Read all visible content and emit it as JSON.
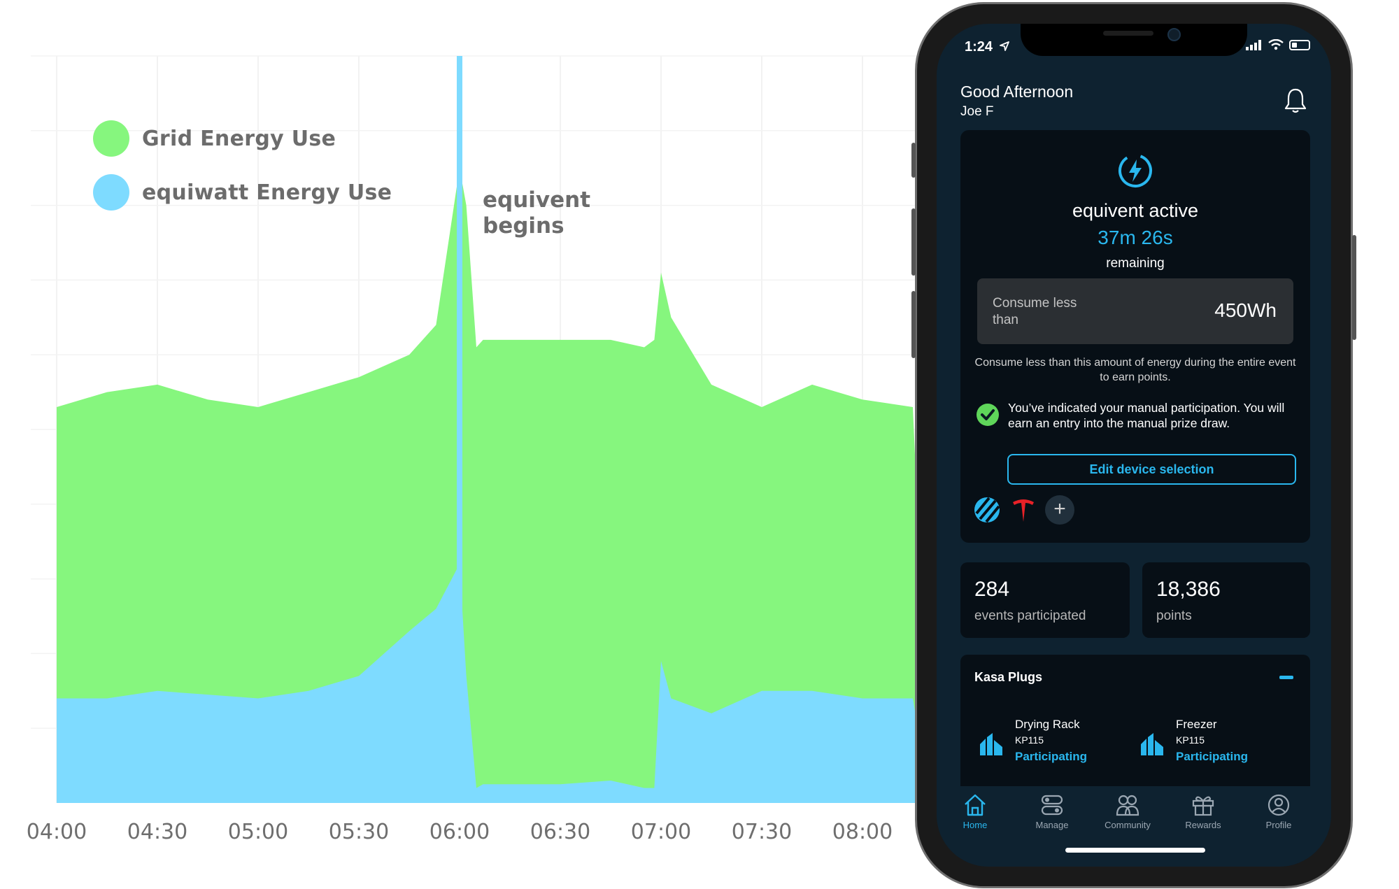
{
  "chart_data": {
    "type": "area",
    "x": [
      "04:00",
      "04:15",
      "04:30",
      "04:45",
      "05:00",
      "05:15",
      "05:30",
      "05:45",
      "05:53",
      "06:00",
      "06:02",
      "06:05",
      "06:07",
      "06:15",
      "06:30",
      "06:45",
      "06:55",
      "06:58",
      "07:00",
      "07:03",
      "07:15",
      "07:30",
      "07:45",
      "08:00",
      "08:15"
    ],
    "xticks": [
      "04:00",
      "04:30",
      "05:00",
      "05:30",
      "06:00",
      "06:30",
      "07:00",
      "07:30",
      "08:00"
    ],
    "series": [
      {
        "name": "Grid Energy Use",
        "color": "#86f67e",
        "values": [
          53,
          55,
          56,
          54,
          53,
          55,
          57,
          60,
          64,
          85,
          80,
          61,
          62,
          62,
          62,
          62,
          61,
          62,
          71,
          65,
          56,
          53,
          56,
          54,
          53
        ]
      },
      {
        "name": "equiwatt Energy Use",
        "color": "#7edbff",
        "values": [
          14,
          14,
          15,
          14.5,
          14,
          15,
          17,
          23,
          26,
          32,
          17,
          2,
          2.5,
          2.5,
          2.5,
          3,
          2,
          2,
          19,
          14,
          12,
          15,
          15,
          14,
          14
        ]
      }
    ],
    "ylim": [
      0,
      100
    ],
    "grid": true,
    "marker": {
      "x": "06:00",
      "label_lines": [
        "equivent",
        "begins"
      ],
      "color": "#7edbff"
    },
    "legend_position": "top-left"
  },
  "phone": {
    "status": {
      "time": "1:24",
      "location_icon": "location-arrow-icon",
      "signal_icon": "signal-icon",
      "wifi_icon": "wifi-icon",
      "battery_icon": "battery-icon"
    },
    "greeting": "Good Afternoon",
    "user_name": "Joe F",
    "event": {
      "title": "equivent active",
      "remaining_time": "37m 26s",
      "remaining_label": "remaining",
      "consume_label": "Consume less than",
      "consume_value": "450Wh",
      "description": "Consume less than this amount of energy during the entire event to earn points.",
      "manual_text": "You’ve indicated your manual participation. You will earn an entry into the manual prize draw.",
      "edit_button": "Edit device selection",
      "plus_label": "+"
    },
    "stats": [
      {
        "value": "284",
        "label": "events participated"
      },
      {
        "value": "18,386",
        "label": "points"
      }
    ],
    "plugs": {
      "title": "Kasa Plugs",
      "items": [
        {
          "name": "Drying Rack",
          "model": "KP115",
          "status": "Participating"
        },
        {
          "name": "Freezer",
          "model": "KP115",
          "status": "Participating"
        }
      ]
    },
    "tabs": [
      "Home",
      "Manage",
      "Community",
      "Rewards",
      "Profile"
    ],
    "colors": {
      "accent": "#2ab7ee",
      "background": "#0e2230",
      "card": "#070f16",
      "tesla_red": "#e82127"
    }
  }
}
